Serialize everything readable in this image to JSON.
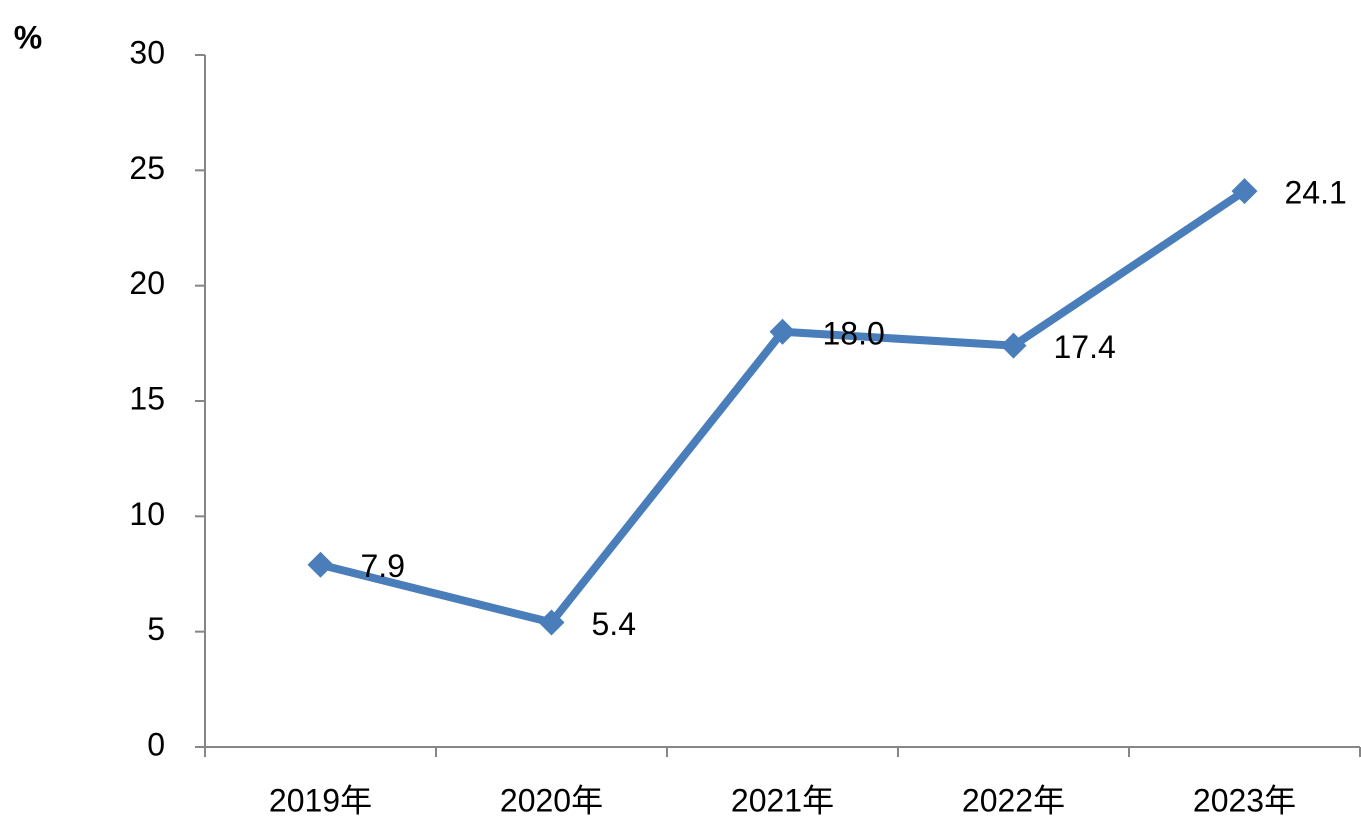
{
  "chart_data": {
    "type": "line",
    "y_label": "%",
    "categories": [
      "2019年",
      "2020年",
      "2021年",
      "2022年",
      "2023年"
    ],
    "values": [
      7.9,
      5.4,
      18.0,
      17.4,
      24.1
    ],
    "value_labels": [
      "7.9",
      "5.4",
      "18.0",
      "17.4",
      "24.1"
    ],
    "color": "#4a7ebb",
    "ylim": [
      0,
      30
    ],
    "yticks": [
      0,
      5,
      10,
      15,
      20,
      25,
      30
    ],
    "grid": false
  }
}
